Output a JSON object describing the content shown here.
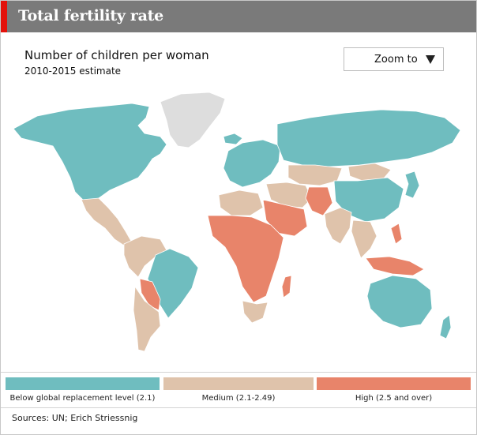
{
  "header": {
    "title": "Total fertility rate"
  },
  "subtitle": "Number of children per woman",
  "subnote": "2010-2015 estimate",
  "zoom": {
    "label": "Zoom to"
  },
  "colors": {
    "low": "#6fbdbf",
    "medium": "#dfc3ab",
    "high": "#e8846a",
    "nodata": "#dddddd",
    "accent": "#e3120b"
  },
  "legend": [
    {
      "key": "low",
      "label": "Below global replacement level (2.1)"
    },
    {
      "key": "medium",
      "label": "Medium (2.1-2.49)"
    },
    {
      "key": "high",
      "label": "High (2.5 and over)"
    }
  ],
  "map_regions": {
    "north_america": "low",
    "greenland": "nodata",
    "mexico_central_america": "medium",
    "northern_south_america": "medium",
    "brazil": "low",
    "bolivia_paraguay": "high",
    "southern_cone": "medium",
    "europe": "low",
    "russia": "low",
    "central_asia": "medium",
    "middle_east": "medium",
    "saudi_egypt_sahel": "high",
    "north_africa_west": "medium",
    "sub_saharan_africa": "high",
    "south_africa": "medium",
    "madagascar": "high",
    "india": "medium",
    "pakistan_afghanistan": "high",
    "china": "low",
    "mongolia": "medium",
    "southeast_asia_mainland": "medium",
    "indonesia_philippines": "high",
    "japan_korea": "low",
    "australia": "low",
    "new_zealand": "low",
    "iceland": "low"
  },
  "sources": "Sources:  UN;  Erich Striessnig"
}
